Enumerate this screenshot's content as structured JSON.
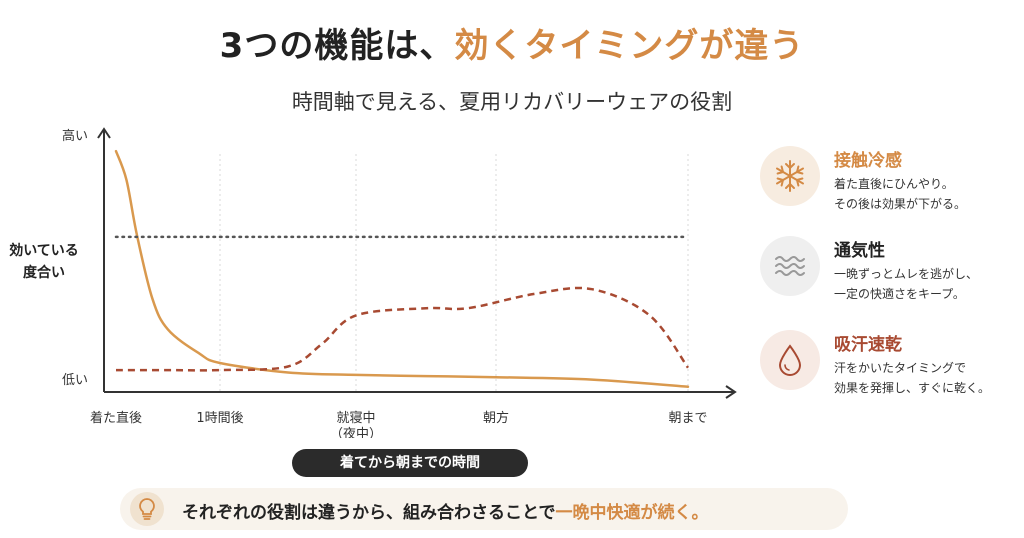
{
  "header": {
    "title_main": "3つの機能は、",
    "title_accent": "効くタイミングが違う",
    "subtitle": "時間軸で見える、夏用リカバリーウェアの役割"
  },
  "chart_data": {
    "type": "line",
    "ylabel_top": "高い",
    "ylabel_mid_1": "効いている",
    "ylabel_mid_2": "度合い",
    "ylabel_bottom": "低い",
    "xlabel": "着てから朝までの時間",
    "categories": [
      {
        "label": "着た直後",
        "sub": ""
      },
      {
        "label": "1時間後",
        "sub": ""
      },
      {
        "label": "就寝中",
        "sub": "（夜中）"
      },
      {
        "label": "朝方",
        "sub": ""
      },
      {
        "label": "朝まで",
        "sub": ""
      }
    ],
    "ylim": [
      0,
      100
    ],
    "grid": "vertical-dotted",
    "series": [
      {
        "style": "solid",
        "color": "#d9994e",
        "x": [
          0,
          0.1,
          0.2,
          0.35,
          0.5,
          0.8,
          1,
          1.5,
          2,
          2.5,
          3,
          3.5,
          4
        ],
        "y": [
          97,
          85,
          62,
          35,
          22,
          12,
          8,
          4,
          3,
          2.5,
          2,
          1,
          -2
        ]
      },
      {
        "style": "dashed",
        "color": "#a84a32",
        "x": [
          0,
          0.5,
          1,
          1.5,
          1.75,
          2,
          2.5,
          2.8,
          3.2,
          3.5,
          3.8,
          4
        ],
        "y": [
          5,
          5,
          5,
          6.5,
          16,
          28,
          31,
          31,
          37,
          39,
          28,
          6
        ]
      },
      {
        "style": "dotted",
        "color": "#555555",
        "x": [
          0,
          4
        ],
        "y": [
          61,
          61
        ]
      }
    ]
  },
  "panels": [
    {
      "icon": "snowflake-icon",
      "title": "接触冷感",
      "line1": "着た直後にひんやり。",
      "line2": "その後は効果が下がる。",
      "accent_title": true
    },
    {
      "icon": "airflow-icon",
      "title": "通気性",
      "line1": "一晩ずっとムレを逃がし、",
      "line2": "一定の快適さをキープ。",
      "accent_title": false
    },
    {
      "icon": "water-drop-icon",
      "title": "吸汗速乾",
      "line1": "汗をかいたタイミングで",
      "line2": "効果を発揮し、すぐに乾く。",
      "accent_title": true
    }
  ],
  "footer": {
    "text_main": "それぞれの役割は違うから、組み合わさることで",
    "text_accent": "一晩中快適が続く。"
  },
  "colors": {
    "accent": "#d48a45",
    "dashed": "#a84a32",
    "text": "#222222",
    "pill_dark": "#2b2b2b"
  }
}
